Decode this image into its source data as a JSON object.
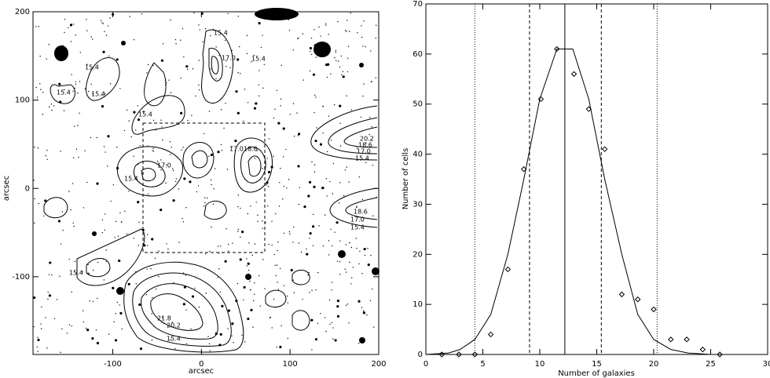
{
  "chart_data": [
    {
      "type": "image",
      "xlabel": "arcsec",
      "ylabel": "arcsec",
      "xlim": [
        -190,
        200
      ],
      "ylim": [
        -188,
        200
      ],
      "xticks": [
        -100,
        0,
        100,
        200
      ],
      "yticks": [
        -100,
        0,
        100,
        200
      ],
      "contour_labels": [
        "15.4",
        "17.0",
        "15.4",
        "15.4",
        "15.4",
        "15.4",
        "17.0",
        "18.6",
        "17.0",
        "15.4",
        "15.4",
        "20.2",
        "18.6",
        "17.0",
        "15.4",
        "18.6",
        "17.0",
        "15.4",
        "15.4",
        "21.8",
        "20.2",
        "15.4"
      ]
    },
    {
      "type": "scatter",
      "xlabel": "Number of galaxies",
      "ylabel": "Number of cells",
      "xlim": [
        0,
        30
      ],
      "ylim": [
        0,
        70
      ],
      "xticks": [
        0,
        5,
        10,
        15,
        20,
        25,
        30
      ],
      "yticks": [
        0,
        10,
        20,
        30,
        40,
        50,
        60,
        70
      ],
      "series": [
        {
          "marker": "diamond",
          "color": "#000000",
          "x": [
            1.4,
            2.9,
            4.3,
            5.7,
            7.2,
            8.6,
            10.1,
            11.5,
            13.0,
            14.3,
            15.7,
            17.2,
            18.6,
            20.0,
            21.5,
            22.9,
            24.3,
            25.8
          ],
          "values": [
            0,
            0,
            0,
            4,
            17,
            37,
            51,
            61,
            56,
            49,
            41,
            12,
            11,
            9,
            3,
            3,
            1,
            0
          ]
        },
        {
          "marker": "line",
          "color": "#000000",
          "x": [
            0,
            2,
            3,
            4.3,
            5.7,
            7.2,
            8.6,
            10.0,
            11.5,
            12.9,
            14.3,
            15.7,
            17.2,
            18.6,
            20.0,
            21.5,
            23.0,
            25.0,
            30.0
          ],
          "values": [
            0,
            0.3,
            1,
            3,
            8,
            20,
            35,
            51,
            61,
            61,
            51,
            35,
            20,
            8,
            3,
            1,
            0.3,
            0,
            0
          ]
        }
      ],
      "vlines": {
        "x": [
          4.3,
          9.1,
          12.2,
          15.4,
          20.3
        ],
        "dash": [
          "dotted",
          "dashed",
          "solid",
          "dashed",
          "dotted"
        ]
      }
    }
  ]
}
